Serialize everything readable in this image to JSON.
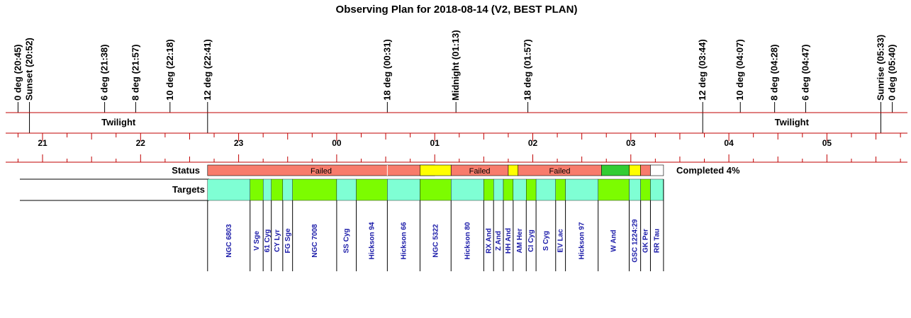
{
  "colors": {
    "axis_line": "#c00000",
    "target_text": "#1a1aa8",
    "failed": "#f87c6c",
    "pending": "#ffff00",
    "completed": "#33cc33",
    "target_a": "#7fffd4",
    "target_b": "#7cfc00"
  },
  "chart_data": {
    "type": "timeline",
    "title": "Observing Plan for 2018-08-14 (V2, BEST PLAN)",
    "x_unit": "hours (local clock)",
    "x_range": [
      "20:30",
      "06:00"
    ],
    "hour_labels": [
      "21",
      "22",
      "23",
      "00",
      "01",
      "02",
      "03",
      "04",
      "05"
    ],
    "events": [
      {
        "label": "0 deg (20:45)",
        "time": "20:45"
      },
      {
        "label": "Sunset (20:52)",
        "time": "20:52"
      },
      {
        "label": "6 deg (21:38)",
        "time": "21:38"
      },
      {
        "label": "8 deg (21:57)",
        "time": "21:57"
      },
      {
        "label": "10 deg (22:18)",
        "time": "22:18"
      },
      {
        "label": "12 deg (22:41)",
        "time": "22:41"
      },
      {
        "label": "18 deg (00:31)",
        "time": "00:31"
      },
      {
        "label": "Midnight (01:13)",
        "time": "01:13"
      },
      {
        "label": "18 deg (01:57)",
        "time": "01:57"
      },
      {
        "label": "12 deg (03:44)",
        "time": "03:44"
      },
      {
        "label": "10 deg (04:07)",
        "time": "04:07"
      },
      {
        "label": "8 deg (04:28)",
        "time": "04:28"
      },
      {
        "label": "6 deg (04:47)",
        "time": "04:47"
      },
      {
        "label": "Sunrise (05:33)",
        "time": "05:33"
      },
      {
        "label": "0 deg (05:40)",
        "time": "05:40"
      }
    ],
    "twilight": [
      {
        "label": "Twilight",
        "start": "20:52",
        "end": "22:41"
      },
      {
        "label": "Twilight",
        "start": "03:44",
        "end": "05:33"
      }
    ],
    "status_label": "Status",
    "targets_label": "Targets",
    "completion": "Completed 4%",
    "status": [
      {
        "start": "22:41",
        "end": "01:00",
        "state": "failed",
        "label": "Failed"
      },
      {
        "start": "00:31",
        "end": "00:31",
        "state": "divider",
        "label": ""
      },
      {
        "start": "00:51",
        "end": "01:10",
        "state": "pending",
        "label": ""
      },
      {
        "start": "01:10",
        "end": "01:45",
        "state": "failed",
        "label": "Failed"
      },
      {
        "start": "01:45",
        "end": "01:51",
        "state": "pending",
        "label": ""
      },
      {
        "start": "01:51",
        "end": "02:42",
        "state": "failed",
        "label": "Failed"
      },
      {
        "start": "02:42",
        "end": "02:59",
        "state": "completed",
        "label": ""
      },
      {
        "start": "02:59",
        "end": "03:06",
        "state": "pending",
        "label": ""
      },
      {
        "start": "03:06",
        "end": "03:12",
        "state": "failed",
        "label": ""
      },
      {
        "start": "03:12",
        "end": "03:20",
        "state": "empty",
        "label": ""
      }
    ],
    "targets": [
      {
        "name": "NGC 6803",
        "start": "22:41",
        "end": "23:07",
        "color": "a"
      },
      {
        "name": "V Sge",
        "start": "23:07",
        "end": "23:15",
        "color": "b"
      },
      {
        "name": "61 Cyg",
        "start": "23:15",
        "end": "23:20",
        "color": "a"
      },
      {
        "name": "CY Lyr",
        "start": "23:20",
        "end": "23:27",
        "color": "b"
      },
      {
        "name": "FG Sge",
        "start": "23:27",
        "end": "23:33",
        "color": "a"
      },
      {
        "name": "NGC 7008",
        "start": "23:33",
        "end": "00:00",
        "color": "b"
      },
      {
        "name": "SS Cyg",
        "start": "00:00",
        "end": "00:12",
        "color": "a"
      },
      {
        "name": "Hickson 94",
        "start": "00:12",
        "end": "00:31",
        "color": "b"
      },
      {
        "name": "Hickson 66",
        "start": "00:31",
        "end": "00:51",
        "color": "a"
      },
      {
        "name": "NGC 5322",
        "start": "00:51",
        "end": "01:10",
        "color": "b"
      },
      {
        "name": "Hickson 80",
        "start": "01:10",
        "end": "01:30",
        "color": "a"
      },
      {
        "name": "RX And",
        "start": "01:30",
        "end": "01:36",
        "color": "b"
      },
      {
        "name": "Z And",
        "start": "01:36",
        "end": "01:42",
        "color": "a"
      },
      {
        "name": "HH And",
        "start": "01:42",
        "end": "01:48",
        "color": "b"
      },
      {
        "name": "AM Her",
        "start": "01:48",
        "end": "01:56",
        "color": "a"
      },
      {
        "name": "CI Cyg",
        "start": "01:56",
        "end": "02:02",
        "color": "b"
      },
      {
        "name": "S Cyg",
        "start": "02:02",
        "end": "02:14",
        "color": "a"
      },
      {
        "name": "EV Lac",
        "start": "02:14",
        "end": "02:20",
        "color": "b"
      },
      {
        "name": "Hickson 97",
        "start": "02:20",
        "end": "02:40",
        "color": "a"
      },
      {
        "name": "W And",
        "start": "02:40",
        "end": "02:59",
        "color": "b"
      },
      {
        "name": "GSC 1224:29",
        "start": "02:59",
        "end": "03:06",
        "color": "a"
      },
      {
        "name": "GK Per",
        "start": "03:06",
        "end": "03:12",
        "color": "b"
      },
      {
        "name": "RR Tau",
        "start": "03:12",
        "end": "03:20",
        "color": "a"
      }
    ]
  }
}
